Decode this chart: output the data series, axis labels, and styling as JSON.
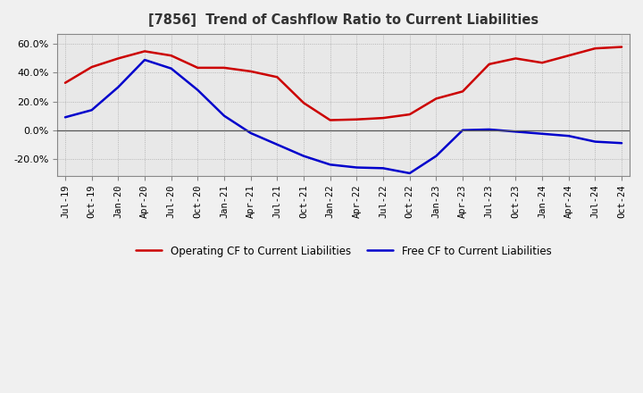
{
  "title": "[7856]  Trend of Cashflow Ratio to Current Liabilities",
  "x_labels": [
    "Jul-19",
    "Oct-19",
    "Jan-20",
    "Apr-20",
    "Jul-20",
    "Oct-20",
    "Jan-21",
    "Apr-21",
    "Jul-21",
    "Oct-21",
    "Jan-22",
    "Apr-22",
    "Jul-22",
    "Oct-22",
    "Jan-23",
    "Apr-23",
    "Jul-23",
    "Oct-23",
    "Jan-24",
    "Apr-24",
    "Jul-24",
    "Oct-24"
  ],
  "op_cf": [
    33.0,
    44.0,
    50.0,
    55.0,
    52.0,
    43.5,
    43.5,
    41.0,
    37.0,
    19.0,
    7.0,
    7.5,
    8.5,
    11.0,
    22.0,
    27.0,
    46.0,
    50.0,
    47.0,
    52.0,
    57.0,
    58.0
  ],
  "free_cf": [
    9.0,
    14.0,
    30.0,
    49.0,
    43.0,
    28.0,
    10.0,
    -2.0,
    -10.0,
    -18.0,
    -24.0,
    -26.0,
    -26.5,
    -30.0,
    -18.0,
    0.0,
    0.5,
    -1.0,
    -2.5,
    -4.0,
    -8.0,
    -9.0
  ],
  "ylim": [
    -32,
    67
  ],
  "yticks": [
    -20.0,
    0.0,
    20.0,
    40.0,
    60.0
  ],
  "op_color": "#cc0000",
  "free_color": "#0000cc",
  "bg_color": "#e8e8e8",
  "plot_bg": "#e8e8e8",
  "grid_color": "#999999",
  "legend_labels": [
    "Operating CF to Current Liabilities",
    "Free CF to Current Liabilities"
  ]
}
